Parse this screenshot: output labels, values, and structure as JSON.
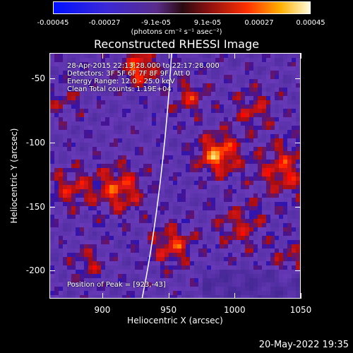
{
  "colorbar": {
    "ticks": [
      "-0.00045",
      "-0.00027",
      "-9.1e-05",
      "9.1e-05",
      "0.00027",
      "0.00045"
    ],
    "units": "(photons cm⁻² s⁻¹ asec⁻²)",
    "range": [
      -0.00045,
      0.00045
    ]
  },
  "plot": {
    "title": "Reconstructed RHESSI Image",
    "info_lines": [
      "28-Apr-2015 22:13:28.000 to 22:17:28.000",
      "Detectors: 3F 5F 6F 7F 8F 9F, Att 0",
      "Energy Range: 12.0 - 25.0 keV",
      "Clean    Total counts: 1.19E+04"
    ],
    "peak_label": "Position of Peak = [923,-43]",
    "xlabel": "Heliocentric X (arcsec)",
    "ylabel": "Heliocentric Y (arcsec)",
    "xticks": [
      "900",
      "950",
      "1000",
      "1050"
    ],
    "yticks": [
      "-50",
      "-100",
      "-150",
      "-200"
    ],
    "xrange": [
      860,
      1050
    ],
    "yrange": [
      -222,
      -30
    ]
  },
  "timestamp": "20-May-2022 19:35"
}
